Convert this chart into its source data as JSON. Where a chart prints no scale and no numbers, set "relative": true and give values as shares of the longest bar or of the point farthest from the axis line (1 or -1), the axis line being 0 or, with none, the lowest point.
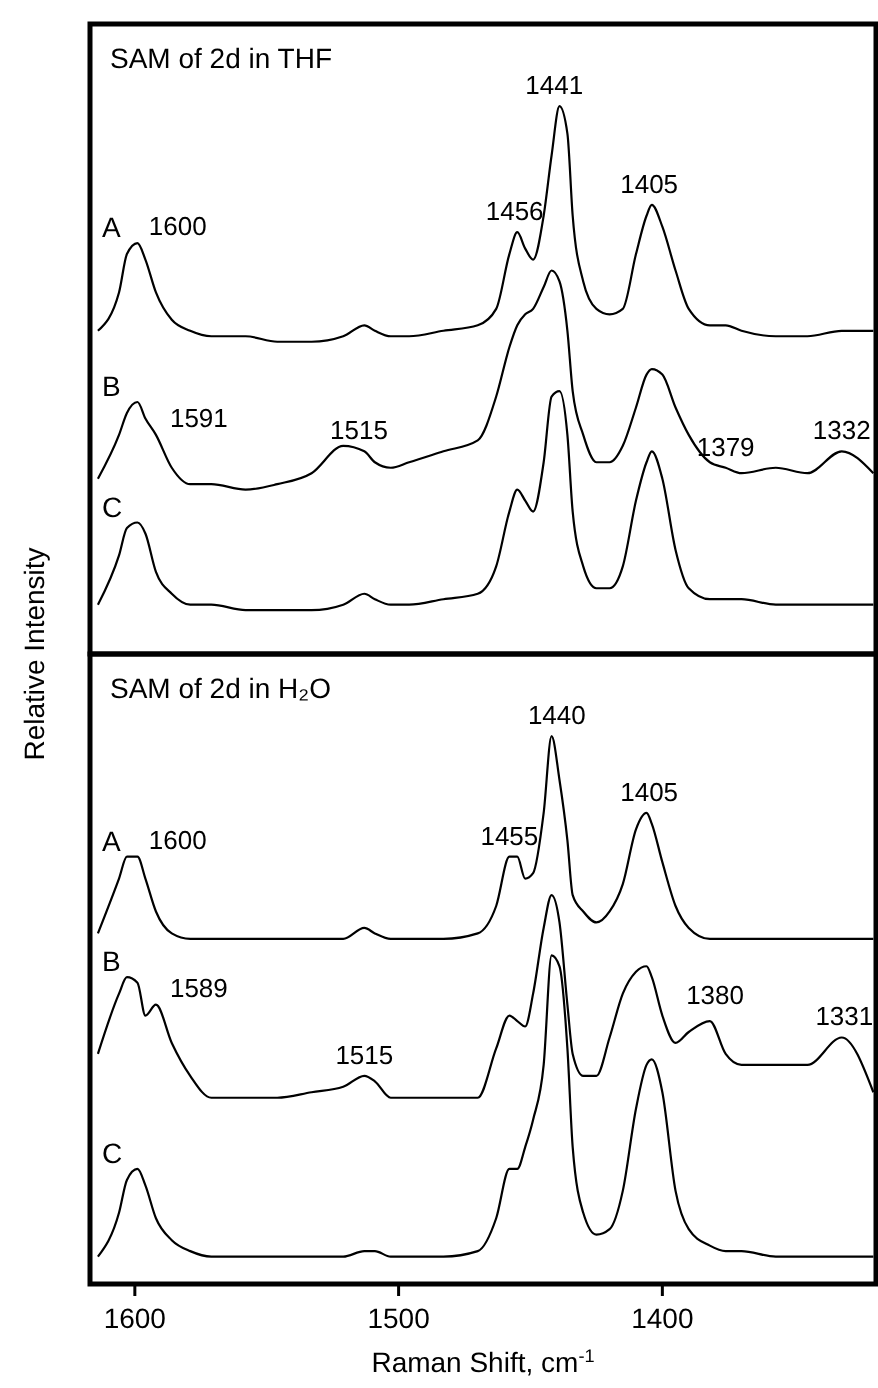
{
  "chart_data": [
    {
      "type": "line",
      "title": "SAM of 2d in THF",
      "ylabel": "Relative Intensity",
      "relative": true,
      "xlim": [
        1617,
        1319
      ],
      "tick_labels": false,
      "legend": false,
      "grid": false,
      "marker": "none",
      "x": [
        1614,
        1606,
        1603,
        1599,
        1596,
        1592,
        1586,
        1579,
        1571,
        1558,
        1546,
        1533,
        1521,
        1513,
        1509,
        1503,
        1496,
        1483,
        1470,
        1463,
        1458,
        1455,
        1452,
        1449,
        1445,
        1442,
        1439,
        1436,
        1434,
        1430,
        1425,
        1420,
        1415,
        1410,
        1406,
        1404,
        1400,
        1395,
        1390,
        1382,
        1376,
        1370,
        1357,
        1345,
        1332,
        1320
      ],
      "series": [
        {
          "name": "A",
          "color": "#000000",
          "values": [
            0.59,
            0.66,
            0.73,
            0.75,
            0.72,
            0.66,
            0.61,
            0.59,
            0.58,
            0.58,
            0.57,
            0.57,
            0.58,
            0.6,
            0.59,
            0.58,
            0.58,
            0.59,
            0.6,
            0.63,
            0.73,
            0.77,
            0.74,
            0.72,
            0.8,
            0.91,
            1.0,
            0.95,
            0.8,
            0.68,
            0.63,
            0.62,
            0.63,
            0.73,
            0.8,
            0.82,
            0.78,
            0.7,
            0.63,
            0.6,
            0.6,
            0.59,
            0.58,
            0.58,
            0.59,
            0.59
          ]
        },
        {
          "name": "B",
          "color": "#000000",
          "values": [
            0.32,
            0.4,
            0.44,
            0.46,
            0.43,
            0.4,
            0.34,
            0.31,
            0.31,
            0.3,
            0.31,
            0.33,
            0.38,
            0.37,
            0.35,
            0.34,
            0.35,
            0.37,
            0.39,
            0.47,
            0.56,
            0.6,
            0.62,
            0.63,
            0.67,
            0.7,
            0.68,
            0.59,
            0.48,
            0.4,
            0.35,
            0.35,
            0.38,
            0.45,
            0.51,
            0.52,
            0.51,
            0.45,
            0.4,
            0.35,
            0.34,
            0.33,
            0.34,
            0.33,
            0.37,
            0.33
          ]
        },
        {
          "name": "C",
          "color": "#000000",
          "values": [
            0.09,
            0.18,
            0.23,
            0.24,
            0.22,
            0.15,
            0.11,
            0.09,
            0.09,
            0.08,
            0.08,
            0.08,
            0.09,
            0.11,
            0.1,
            0.09,
            0.09,
            0.1,
            0.11,
            0.16,
            0.26,
            0.3,
            0.28,
            0.26,
            0.35,
            0.47,
            0.48,
            0.4,
            0.26,
            0.16,
            0.12,
            0.12,
            0.16,
            0.28,
            0.35,
            0.37,
            0.32,
            0.19,
            0.12,
            0.1,
            0.1,
            0.1,
            0.09,
            0.09,
            0.09,
            0.09
          ]
        }
      ],
      "annotations": [
        {
          "text": "1600",
          "x": 1600,
          "y": 0.75
        },
        {
          "text": "1456",
          "x": 1456,
          "y": 0.77
        },
        {
          "text": "1441",
          "x": 1441,
          "y": 1.0
        },
        {
          "text": "1405",
          "x": 1405,
          "y": 0.82
        },
        {
          "text": "1591",
          "x": 1592,
          "y": 0.4
        },
        {
          "text": "1515",
          "x": 1515,
          "y": 0.37
        },
        {
          "text": "1379",
          "x": 1376,
          "y": 0.34
        },
        {
          "text": "1332",
          "x": 1332,
          "y": 0.37
        }
      ]
    },
    {
      "type": "line",
      "title": "SAM of 2d in H₂O",
      "xlabel": "Raman Shift, cm$^{-1}$",
      "relative": true,
      "xlim": [
        1617,
        1319
      ],
      "xticks": [
        1600,
        1500,
        1400
      ],
      "tick_labels": "x",
      "legend": false,
      "grid": false,
      "marker": "none",
      "x": [
        1614,
        1606,
        1603,
        1599,
        1596,
        1592,
        1586,
        1579,
        1571,
        1558,
        1546,
        1533,
        1521,
        1513,
        1509,
        1503,
        1496,
        1483,
        1470,
        1463,
        1458,
        1455,
        1452,
        1449,
        1445,
        1442,
        1439,
        1436,
        1434,
        1430,
        1425,
        1420,
        1415,
        1410,
        1406,
        1404,
        1400,
        1395,
        1390,
        1382,
        1376,
        1370,
        1357,
        1345,
        1332,
        1320
      ],
      "series": [
        {
          "name": "A",
          "color": "#000000",
          "values": [
            0.64,
            0.74,
            0.78,
            0.78,
            0.74,
            0.68,
            0.64,
            0.63,
            0.63,
            0.63,
            0.63,
            0.63,
            0.63,
            0.65,
            0.64,
            0.63,
            0.63,
            0.63,
            0.64,
            0.69,
            0.78,
            0.78,
            0.74,
            0.75,
            0.86,
            1.0,
            0.92,
            0.81,
            0.71,
            0.68,
            0.66,
            0.68,
            0.73,
            0.83,
            0.86,
            0.84,
            0.77,
            0.69,
            0.65,
            0.63,
            0.63,
            0.63,
            0.63,
            0.63,
            0.63,
            0.63
          ]
        },
        {
          "name": "B",
          "color": "#000000",
          "values": [
            0.42,
            0.53,
            0.56,
            0.55,
            0.49,
            0.51,
            0.44,
            0.38,
            0.34,
            0.34,
            0.34,
            0.35,
            0.36,
            0.38,
            0.37,
            0.34,
            0.34,
            0.34,
            0.34,
            0.43,
            0.49,
            0.48,
            0.47,
            0.53,
            0.65,
            0.71,
            0.66,
            0.51,
            0.42,
            0.38,
            0.38,
            0.45,
            0.53,
            0.57,
            0.58,
            0.56,
            0.49,
            0.44,
            0.46,
            0.48,
            0.42,
            0.4,
            0.4,
            0.4,
            0.45,
            0.35
          ]
        },
        {
          "name": "C",
          "color": "#000000",
          "values": [
            0.05,
            0.13,
            0.19,
            0.21,
            0.18,
            0.12,
            0.08,
            0.06,
            0.05,
            0.05,
            0.05,
            0.05,
            0.05,
            0.06,
            0.06,
            0.05,
            0.05,
            0.05,
            0.06,
            0.12,
            0.21,
            0.21,
            0.25,
            0.3,
            0.4,
            0.6,
            0.58,
            0.43,
            0.25,
            0.13,
            0.09,
            0.1,
            0.17,
            0.32,
            0.4,
            0.41,
            0.35,
            0.17,
            0.1,
            0.07,
            0.06,
            0.06,
            0.05,
            0.05,
            0.05,
            0.05
          ]
        }
      ],
      "annotations": [
        {
          "text": "1600",
          "x": 1600,
          "y": 0.78
        },
        {
          "text": "1455",
          "x": 1458,
          "y": 0.78
        },
        {
          "text": "1440",
          "x": 1440,
          "y": 1.0
        },
        {
          "text": "1405",
          "x": 1405,
          "y": 0.86
        },
        {
          "text": "1589",
          "x": 1592,
          "y": 0.51
        },
        {
          "text": "1515",
          "x": 1513,
          "y": 0.38
        },
        {
          "text": "1380",
          "x": 1380,
          "y": 0.49
        },
        {
          "text": "1331",
          "x": 1331,
          "y": 0.45
        }
      ]
    }
  ]
}
